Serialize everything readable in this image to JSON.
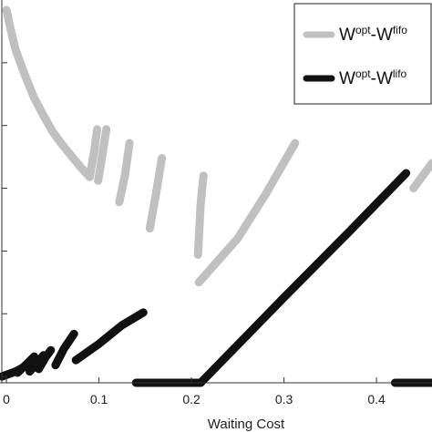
{
  "chart_data": {
    "type": "scatter",
    "title": "",
    "xlabel": "Waiting Cost",
    "ylabel": "",
    "xlim": [
      -0.005,
      0.46
    ],
    "ylim": [
      -0.05,
      3.0
    ],
    "xticks": [
      0,
      0.1,
      0.2,
      0.3,
      0.4
    ],
    "xtick_labels": [
      "0",
      "0.1",
      "0.2",
      "0.3",
      "0.4"
    ],
    "yticks": [
      0,
      0.5,
      1.0,
      1.5,
      2.0,
      2.5
    ],
    "grid": false,
    "legend_position": "top-right",
    "legend": [
      {
        "base": "W",
        "sup1": "opt",
        "mid": "-W",
        "sup2": "fifo",
        "color": "#c0c0c0"
      },
      {
        "base": "W",
        "sup1": "opt",
        "mid": "-W",
        "sup2": "lifo",
        "color": "#111111"
      }
    ],
    "series": [
      {
        "key": "fifo",
        "color": "#c0c0c0",
        "segments": [
          [
            [
              0.0,
              2.92
            ],
            [
              0.005,
              2.75
            ],
            [
              0.01,
              2.6
            ],
            [
              0.02,
              2.4
            ],
            [
              0.03,
              2.22
            ],
            [
              0.04,
              2.08
            ],
            [
              0.05,
              1.95
            ],
            [
              0.06,
              1.85
            ],
            [
              0.07,
              1.76
            ],
            [
              0.08,
              1.67
            ],
            [
              0.09,
              1.59
            ]
          ],
          [
            [
              0.09,
              1.59
            ],
            [
              0.095,
              1.8
            ],
            [
              0.098,
              1.97
            ]
          ],
          [
            [
              0.099,
              1.56
            ],
            [
              0.104,
              1.78
            ],
            [
              0.108,
              1.97
            ]
          ],
          [
            [
              0.122,
              1.39
            ],
            [
              0.128,
              1.6
            ],
            [
              0.133,
              1.86
            ]
          ],
          [
            [
              0.155,
              1.18
            ],
            [
              0.162,
              1.47
            ],
            [
              0.168,
              1.74
            ]
          ],
          [
            [
              0.207,
              0.97
            ],
            [
              0.21,
              1.38
            ],
            [
              0.213,
              1.6
            ]
          ],
          [
            [
              0.208,
              0.75
            ],
            [
              0.25,
              1.1
            ],
            [
              0.28,
              1.45
            ],
            [
              0.312,
              1.86
            ]
          ],
          [
            [
              0.44,
              1.5
            ],
            [
              0.46,
              1.7
            ]
          ]
        ]
      },
      {
        "key": "lifo",
        "color": "#111111",
        "segments": [
          [
            [
              -0.005,
              0.0
            ],
            [
              0.01,
              0.04
            ],
            [
              0.02,
              0.08
            ],
            [
              0.025,
              0.09
            ]
          ],
          [
            [
              0.012,
              0.03
            ],
            [
              0.022,
              0.1
            ],
            [
              0.03,
              0.16
            ]
          ],
          [
            [
              0.025,
              0.04
            ],
            [
              0.034,
              0.11
            ],
            [
              0.04,
              0.17
            ]
          ],
          [
            [
              0.035,
              0.06
            ],
            [
              0.042,
              0.15
            ],
            [
              0.048,
              0.21
            ]
          ],
          [
            [
              0.053,
              0.09
            ],
            [
              0.062,
              0.22
            ],
            [
              0.073,
              0.34
            ]
          ],
          [
            [
              0.075,
              0.13
            ],
            [
              0.1,
              0.26
            ],
            [
              0.125,
              0.41
            ],
            [
              0.148,
              0.51
            ]
          ],
          [
            [
              0.14,
              -0.05
            ],
            [
              0.21,
              -0.05
            ]
          ],
          [
            [
              0.21,
              -0.05
            ],
            [
              0.3,
              0.63
            ],
            [
              0.37,
              1.15
            ],
            [
              0.432,
              1.62
            ]
          ],
          [
            [
              0.42,
              -0.05
            ],
            [
              0.46,
              -0.05
            ]
          ]
        ]
      }
    ]
  }
}
